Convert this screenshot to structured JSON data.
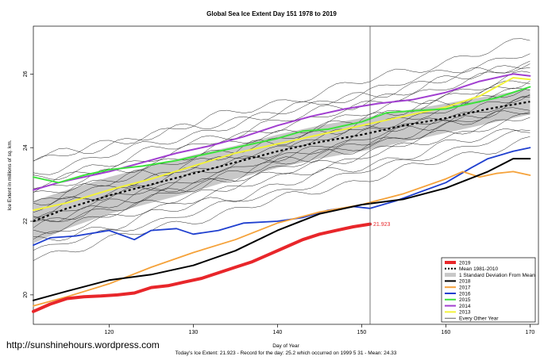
{
  "chart_data": {
    "type": "line",
    "title": "Global Sea Ice Extent Day 151 1978 to 2019",
    "xlabel": "Day of Year",
    "ylabel": "Ice Extent in millions of sq. km.",
    "xlim": [
      111,
      171
    ],
    "ylim": [
      19.2,
      27.3
    ],
    "x_ticks": [
      120,
      130,
      140,
      150,
      160,
      170
    ],
    "y_ticks": [
      20,
      22,
      24,
      26
    ],
    "current_day_marker": 151,
    "annotation": {
      "text": "21.923",
      "x": 151,
      "y": 21.923
    },
    "footer": "Today's Ice Extent: 21.923 - Record for the day: 25.2 which occurred on 1999 5 31 - Mean: 24.33",
    "watermark": "http://sunshinehours.wordpress.com",
    "legend_position": "bottom-right",
    "legend": [
      {
        "label": "2019",
        "color": "#e8262a",
        "style": "thick"
      },
      {
        "label": "Mean 1981-2010",
        "color": "#000000",
        "style": "dotted"
      },
      {
        "label": "1 Standard Deviation From Mean",
        "color": "#bfbfbf",
        "style": "band"
      },
      {
        "label": "2018",
        "color": "#000000",
        "style": "solid"
      },
      {
        "label": "2017",
        "color": "#f5a23a",
        "style": "solid"
      },
      {
        "label": "2016",
        "color": "#1f3fcf",
        "style": "solid"
      },
      {
        "label": "2015",
        "color": "#3de23d",
        "style": "solid"
      },
      {
        "label": "2014",
        "color": "#a13fd0",
        "style": "solid"
      },
      {
        "label": "2013",
        "color": "#f2f23a",
        "style": "solid"
      },
      {
        "label": "Every Other Year",
        "color": "#000000",
        "style": "thin"
      }
    ],
    "series": [
      {
        "name": "2019",
        "color": "#e8262a",
        "width": 4,
        "x": [
          111,
          113,
          115,
          117,
          119,
          121,
          123,
          125,
          127,
          129,
          131,
          133,
          135,
          137,
          139,
          141,
          143,
          145,
          147,
          149,
          151
        ],
        "y": [
          19.55,
          19.75,
          19.9,
          19.95,
          19.97,
          20.0,
          20.05,
          20.2,
          20.25,
          20.35,
          20.45,
          20.6,
          20.75,
          20.9,
          21.1,
          21.3,
          21.5,
          21.65,
          21.75,
          21.85,
          21.923
        ]
      },
      {
        "name": "2018",
        "color": "#000000",
        "width": 2,
        "x": [
          111,
          115,
          120,
          125,
          130,
          135,
          140,
          145,
          150,
          155,
          160,
          165,
          168,
          170
        ],
        "y": [
          19.85,
          20.1,
          20.4,
          20.55,
          20.8,
          21.2,
          21.75,
          22.2,
          22.45,
          22.6,
          22.9,
          23.35,
          23.7,
          23.7
        ]
      },
      {
        "name": "2017",
        "color": "#f5a23a",
        "width": 1.8,
        "x": [
          111,
          115,
          120,
          125,
          130,
          135,
          140,
          145,
          150,
          155,
          160,
          162,
          164,
          166,
          168,
          170
        ],
        "y": [
          19.7,
          19.95,
          20.3,
          20.75,
          21.15,
          21.5,
          21.95,
          22.25,
          22.45,
          22.75,
          23.15,
          23.35,
          23.2,
          23.3,
          23.35,
          23.25
        ]
      },
      {
        "name": "2016",
        "color": "#1f3fcf",
        "width": 1.8,
        "x": [
          111,
          113,
          116,
          120,
          123,
          125,
          128,
          130,
          133,
          136,
          140,
          143,
          146,
          149,
          151,
          154,
          157,
          160,
          163,
          165,
          168,
          170
        ],
        "y": [
          21.35,
          21.55,
          21.6,
          21.75,
          21.5,
          21.75,
          21.8,
          21.65,
          21.75,
          21.95,
          22.0,
          22.1,
          22.3,
          22.4,
          22.35,
          22.55,
          22.8,
          23.05,
          23.45,
          23.7,
          23.9,
          24.0
        ]
      },
      {
        "name": "2015",
        "color": "#3de23d",
        "width": 2,
        "x": [
          111,
          114,
          117,
          120,
          124,
          128,
          132,
          136,
          140,
          143,
          146,
          150,
          153,
          156,
          160,
          163,
          166,
          170
        ],
        "y": [
          23.2,
          23.05,
          23.25,
          23.4,
          23.5,
          23.65,
          23.85,
          24.05,
          24.25,
          24.45,
          24.5,
          24.7,
          24.95,
          25.0,
          25.05,
          25.2,
          25.35,
          25.65
        ]
      },
      {
        "name": "2014",
        "color": "#a13fd0",
        "width": 2,
        "x": [
          111,
          114,
          117,
          120,
          124,
          128,
          132,
          136,
          140,
          144,
          148,
          152,
          156,
          160,
          164,
          168,
          170
        ],
        "y": [
          22.85,
          23.05,
          23.2,
          23.35,
          23.6,
          23.85,
          24.05,
          24.3,
          24.6,
          24.85,
          25.05,
          25.2,
          25.3,
          25.5,
          25.8,
          26.0,
          25.95
        ]
      },
      {
        "name": "2013",
        "color": "#f2f23a",
        "width": 2,
        "x": [
          111,
          115,
          120,
          125,
          130,
          135,
          140,
          145,
          150,
          155,
          160,
          164,
          168,
          170
        ],
        "y": [
          22.3,
          22.5,
          22.85,
          23.15,
          23.5,
          23.85,
          24.1,
          24.35,
          24.6,
          24.85,
          25.1,
          25.4,
          25.9,
          25.85
        ]
      }
    ],
    "mean": {
      "x": [
        111,
        115,
        120,
        125,
        130,
        135,
        140,
        145,
        150,
        155,
        160,
        165,
        170
      ],
      "y": [
        22.0,
        22.35,
        22.7,
        23.0,
        23.3,
        23.6,
        23.9,
        24.15,
        24.35,
        24.6,
        24.8,
        25.05,
        25.25
      ]
    },
    "std_band": {
      "x": [
        111,
        115,
        120,
        125,
        130,
        135,
        140,
        145,
        150,
        155,
        160,
        165,
        170
      ],
      "upper": [
        22.55,
        22.85,
        23.2,
        23.5,
        23.8,
        24.05,
        24.35,
        24.6,
        24.8,
        25.0,
        25.2,
        25.4,
        25.6
      ],
      "lower": [
        21.4,
        21.8,
        22.2,
        22.5,
        22.8,
        23.15,
        23.45,
        23.7,
        23.9,
        24.15,
        24.4,
        24.65,
        24.9
      ]
    },
    "other_years": [
      {
        "start": 21.0,
        "slope": 0.0545,
        "amp": 0.1,
        "phase": 0.0
      },
      {
        "start": 21.2,
        "slope": 0.055,
        "amp": 0.08,
        "phase": 1.1
      },
      {
        "start": 21.4,
        "slope": 0.054,
        "amp": 0.12,
        "phase": 2.3
      },
      {
        "start": 21.55,
        "slope": 0.056,
        "amp": 0.09,
        "phase": 0.7
      },
      {
        "start": 21.7,
        "slope": 0.0545,
        "amp": 0.11,
        "phase": 3.1
      },
      {
        "start": 21.85,
        "slope": 0.0555,
        "amp": 0.1,
        "phase": 1.9
      },
      {
        "start": 22.0,
        "slope": 0.053,
        "amp": 0.13,
        "phase": 2.8
      },
      {
        "start": 22.1,
        "slope": 0.055,
        "amp": 0.08,
        "phase": 0.3
      },
      {
        "start": 22.2,
        "slope": 0.054,
        "amp": 0.12,
        "phase": 4.2
      },
      {
        "start": 22.3,
        "slope": 0.056,
        "amp": 0.1,
        "phase": 5.0
      },
      {
        "start": 22.45,
        "slope": 0.0535,
        "amp": 0.09,
        "phase": 1.5
      },
      {
        "start": 22.55,
        "slope": 0.055,
        "amp": 0.14,
        "phase": 3.7
      },
      {
        "start": 22.65,
        "slope": 0.0545,
        "amp": 0.1,
        "phase": 2.0
      },
      {
        "start": 22.8,
        "slope": 0.054,
        "amp": 0.11,
        "phase": 0.9
      },
      {
        "start": 22.95,
        "slope": 0.0555,
        "amp": 0.09,
        "phase": 4.6
      },
      {
        "start": 23.1,
        "slope": 0.055,
        "amp": 0.12,
        "phase": 2.6
      },
      {
        "start": 23.3,
        "slope": 0.056,
        "amp": 0.1,
        "phase": 3.3
      },
      {
        "start": 23.6,
        "slope": 0.056,
        "amp": 0.11,
        "phase": 1.2
      },
      {
        "start": 23.7,
        "slope": 0.044,
        "amp": 0.12,
        "phase": 5.4
      },
      {
        "start": 21.9,
        "slope": 0.057,
        "amp": 0.13,
        "phase": 0.5
      }
    ]
  }
}
